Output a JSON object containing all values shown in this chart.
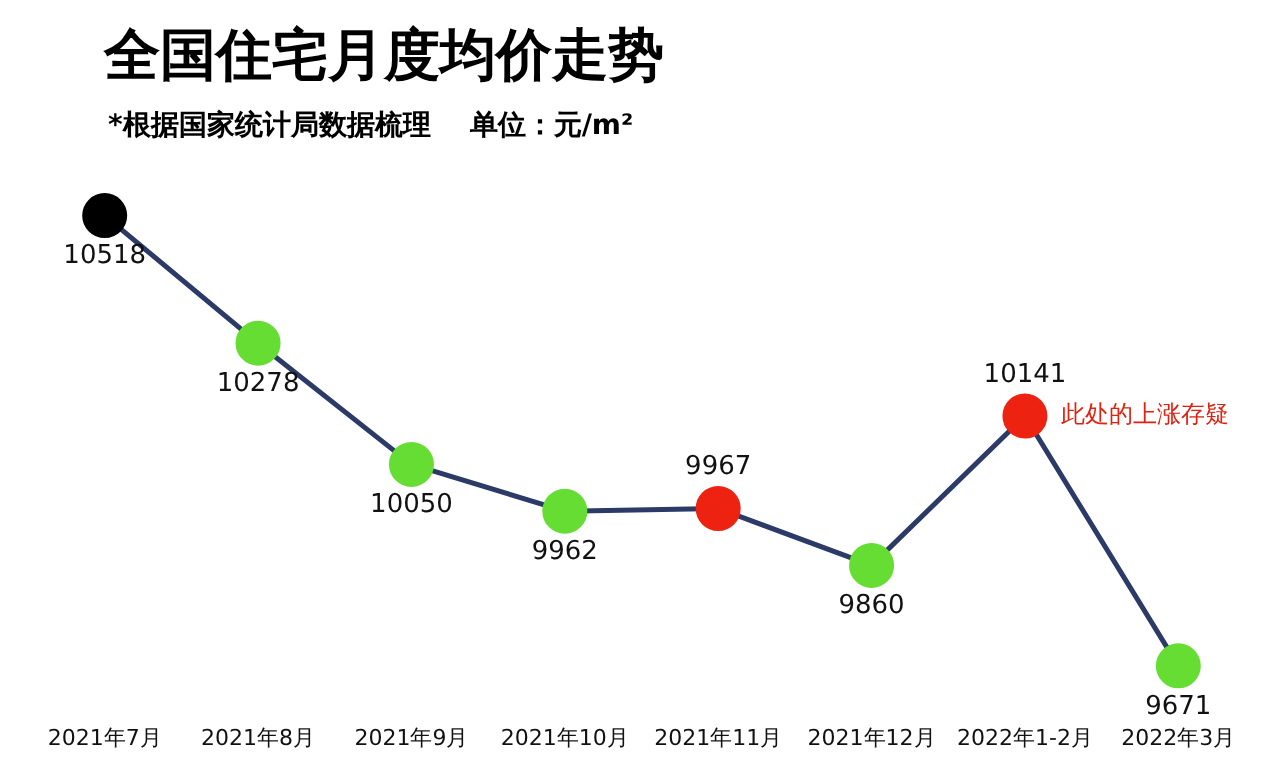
{
  "chart_data": {
    "type": "line",
    "title": "全国住宅月度均价走势",
    "subtitle": "*根据国家统计局数据梳理    单位：元/m²",
    "categories": [
      "2021年7月",
      "2021年8月",
      "2021年9月",
      "2021年10月",
      "2021年11月",
      "2021年12月",
      "2022年1-2月",
      "2022年3月"
    ],
    "series": [
      {
        "color": "#2b3a67",
        "values": [
          10518,
          10278,
          10050,
          9962,
          9967,
          9860,
          10141,
          9671
        ],
        "colors": [
          "#000000",
          "#66dd33",
          "#66dd33",
          "#66dd33",
          "#ee2211",
          "#66dd33",
          "#ee2211",
          "#66dd33"
        ]
      }
    ],
    "marker": "circle",
    "data_labels": true,
    "grid": false,
    "legend": false,
    "annotations": [
      {
        "text": "此处的上涨存疑",
        "x": "2022年1-2月",
        "y": 10141
      }
    ]
  }
}
